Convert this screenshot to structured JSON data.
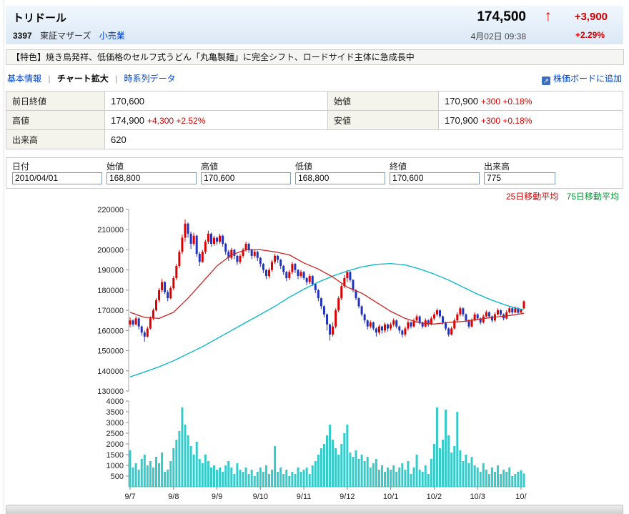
{
  "header": {
    "title": "トリドール",
    "code": "3397",
    "market": "東証マザーズ",
    "sector": "小売業",
    "price": "174,500",
    "change": "+3,900",
    "datetime": "4月02日 09:38",
    "percent": "+2.29%"
  },
  "icons": {
    "up_arrow": "↑",
    "add_board": "↗"
  },
  "feature": "【特色】焼き鳥発祥、低価格のセルフ式うどん「丸亀製麺」に完全シフト、ロードサイド主体に急成長中",
  "tabs": {
    "separator": "|",
    "items": [
      {
        "label": "基本情報",
        "active": false
      },
      {
        "label": "チャート拡大",
        "active": true
      },
      {
        "label": "時系列データ",
        "active": false
      }
    ],
    "add_board": "株価ボードに追加"
  },
  "summary": {
    "rows": [
      {
        "cells": [
          {
            "label": "前日終値",
            "value": "170,600",
            "extra": ""
          },
          {
            "label": "始値",
            "value": "170,900",
            "extra": "+300 +0.18%"
          }
        ]
      },
      {
        "cells": [
          {
            "label": "高値",
            "value": "174,900",
            "extra": "+4,300 +2.52%"
          },
          {
            "label": "安値",
            "value": "170,900",
            "extra": "+300 +0.18%"
          }
        ]
      },
      {
        "cells": [
          {
            "label": "出来高",
            "value": "620",
            "extra": ""
          }
        ]
      }
    ]
  },
  "form": {
    "headers": [
      "日付",
      "始値",
      "高値",
      "低値",
      "終値",
      "出来高"
    ],
    "values": [
      "2010/04/01",
      "168,800",
      "170,600",
      "168,800",
      "170,600",
      "775"
    ]
  },
  "legend": {
    "ma25": "25日移動平均",
    "ma75": "75日移動平均"
  },
  "colors": {
    "up": "#dd0000",
    "down": "#2233bb",
    "volume": "#35cbcb",
    "ma25": "#cc2222",
    "ma75": "#00b7c9",
    "legend_ma25": "#cc0000",
    "legend_ma75": "#009933",
    "negative_red": "#d40000",
    "link": "#0041cc"
  },
  "chart_data": {
    "type": "candlestick",
    "title": "",
    "xlabel": "",
    "ylabel": "",
    "grid": false,
    "legend_position": "top-right",
    "price_axis": {
      "min": 130000,
      "max": 220000,
      "ticks": [
        220000,
        210000,
        200000,
        190000,
        180000,
        170000,
        160000,
        150000,
        140000,
        130000
      ]
    },
    "volume_axis": {
      "min": 0,
      "max": 4000,
      "ticks": [
        4000,
        3500,
        3000,
        2500,
        2000,
        1500,
        1000,
        500
      ]
    },
    "x_ticks": [
      "9/7",
      "9/8",
      "9/9",
      "9/10",
      "9/11",
      "9/12",
      "10/1",
      "10/2",
      "10/3",
      "10/"
    ],
    "x_tick_indices": [
      0,
      15,
      30,
      45,
      60,
      75,
      90,
      105,
      120,
      135
    ],
    "candles": [
      [
        163000,
        166500,
        161500,
        165000,
        1700
      ],
      [
        165000,
        165500,
        162000,
        163000,
        900
      ],
      [
        163000,
        167000,
        162500,
        166000,
        1100
      ],
      [
        166000,
        166500,
        160500,
        162000,
        800
      ],
      [
        162000,
        162500,
        157500,
        159000,
        1300
      ],
      [
        159000,
        160000,
        154500,
        157000,
        1500
      ],
      [
        157000,
        162000,
        156500,
        161000,
        1000
      ],
      [
        161000,
        167000,
        160500,
        166000,
        1200
      ],
      [
        166000,
        171000,
        165000,
        170000,
        900
      ],
      [
        170000,
        176000,
        169500,
        175000,
        1400
      ],
      [
        175000,
        181000,
        174000,
        180000,
        1100
      ],
      [
        180000,
        185500,
        179000,
        184000,
        1600
      ],
      [
        184000,
        184500,
        178000,
        179000,
        700
      ],
      [
        179000,
        180000,
        174500,
        176000,
        800
      ],
      [
        176000,
        182000,
        175500,
        181000,
        1200
      ],
      [
        181000,
        187000,
        180000,
        186000,
        1800
      ],
      [
        186000,
        193000,
        185000,
        192000,
        2200
      ],
      [
        192000,
        200000,
        191000,
        199000,
        2600
      ],
      [
        199000,
        207500,
        198000,
        206000,
        3700
      ],
      [
        206000,
        215000,
        204000,
        213000,
        2900
      ],
      [
        213000,
        213500,
        206000,
        208000,
        2400
      ],
      [
        208000,
        209000,
        200500,
        203000,
        1900
      ],
      [
        203000,
        208500,
        202000,
        207000,
        1500
      ],
      [
        207000,
        207500,
        196500,
        198000,
        2100
      ],
      [
        198000,
        199000,
        192000,
        194000,
        1300
      ],
      [
        194000,
        200000,
        193500,
        199000,
        1100
      ],
      [
        199000,
        205000,
        198000,
        204000,
        1500
      ],
      [
        204000,
        209500,
        203000,
        208000,
        1200
      ],
      [
        208000,
        208500,
        201500,
        203000,
        900
      ],
      [
        203000,
        207000,
        202000,
        206000,
        1000
      ],
      [
        206000,
        206500,
        202500,
        204000,
        800
      ],
      [
        204000,
        208000,
        203000,
        207000,
        900
      ],
      [
        207000,
        207500,
        201500,
        203000,
        700
      ],
      [
        203000,
        203500,
        197500,
        199000,
        1000
      ],
      [
        199000,
        200000,
        194500,
        196000,
        1200
      ],
      [
        196000,
        201000,
        195000,
        200000,
        900
      ],
      [
        200000,
        200500,
        195500,
        197000,
        600
      ],
      [
        197000,
        197500,
        192500,
        194000,
        1100
      ],
      [
        194000,
        198000,
        193000,
        197000,
        800
      ],
      [
        197000,
        201000,
        196000,
        200000,
        700
      ],
      [
        200000,
        204000,
        199000,
        203000,
        900
      ],
      [
        203000,
        203500,
        198500,
        200000,
        600
      ],
      [
        200000,
        200500,
        195500,
        197000,
        800
      ],
      [
        197000,
        200000,
        196000,
        199000,
        500
      ],
      [
        199000,
        199500,
        194500,
        196000,
        700
      ],
      [
        196000,
        196500,
        191500,
        193000,
        900
      ],
      [
        193000,
        193500,
        188500,
        190000,
        700
      ],
      [
        190000,
        190500,
        185500,
        187000,
        1000
      ],
      [
        187000,
        191000,
        186000,
        190000,
        600
      ],
      [
        190000,
        195000,
        189000,
        194000,
        800
      ],
      [
        194000,
        198000,
        193000,
        197000,
        1900
      ],
      [
        197000,
        197500,
        193500,
        195000,
        700
      ],
      [
        195000,
        195500,
        190500,
        192000,
        900
      ],
      [
        192000,
        192500,
        187500,
        189000,
        600
      ],
      [
        189000,
        189500,
        184500,
        186000,
        800
      ],
      [
        186000,
        190000,
        185000,
        189000,
        500
      ],
      [
        189000,
        194000,
        188000,
        193000,
        700
      ],
      [
        193000,
        193500,
        188500,
        190000,
        600
      ],
      [
        190000,
        190500,
        185500,
        187000,
        900
      ],
      [
        187000,
        190000,
        186000,
        189000,
        700
      ],
      [
        189000,
        189500,
        185000,
        186000,
        800
      ],
      [
        186000,
        186500,
        182500,
        184000,
        900
      ],
      [
        184000,
        188000,
        183000,
        187000,
        600
      ],
      [
        187000,
        187500,
        182000,
        183000,
        1000
      ],
      [
        183000,
        183500,
        178500,
        180000,
        1200
      ],
      [
        180000,
        180500,
        174500,
        176000,
        1500
      ],
      [
        176000,
        176500,
        170500,
        172000,
        1800
      ],
      [
        172000,
        172500,
        166500,
        168000,
        2000
      ],
      [
        168000,
        168500,
        160000,
        163000,
        2400
      ],
      [
        163000,
        163500,
        155000,
        158000,
        2900
      ],
      [
        158000,
        164000,
        157000,
        162000,
        2200
      ],
      [
        162000,
        171000,
        161000,
        170000,
        1800
      ],
      [
        170000,
        177000,
        169000,
        176000,
        1500
      ],
      [
        176000,
        183000,
        175000,
        182000,
        2000
      ],
      [
        182000,
        187500,
        181000,
        186000,
        2500
      ],
      [
        186000,
        190000,
        184000,
        189000,
        2900
      ],
      [
        189000,
        189500,
        184000,
        185000,
        1600
      ],
      [
        185000,
        185500,
        179000,
        180000,
        1400
      ],
      [
        180000,
        180500,
        175000,
        176000,
        1700
      ],
      [
        176000,
        176500,
        171000,
        172000,
        1300
      ],
      [
        172000,
        172500,
        167000,
        168000,
        1500
      ],
      [
        168000,
        168500,
        163500,
        165000,
        1200
      ],
      [
        165000,
        165500,
        160500,
        162000,
        1400
      ],
      [
        162000,
        165000,
        161000,
        164000,
        900
      ],
      [
        164000,
        164500,
        160000,
        161000,
        1100
      ],
      [
        161000,
        161500,
        157000,
        159000,
        1300
      ],
      [
        159000,
        163000,
        158000,
        162000,
        800
      ],
      [
        162000,
        162500,
        158500,
        160000,
        1000
      ],
      [
        160000,
        164000,
        159000,
        163000,
        700
      ],
      [
        163000,
        163500,
        159500,
        161000,
        900
      ],
      [
        161000,
        164000,
        160000,
        163000,
        800
      ],
      [
        163000,
        166000,
        162000,
        165000,
        1000
      ],
      [
        165000,
        165500,
        161000,
        162000,
        700
      ],
      [
        162000,
        162500,
        158500,
        160000,
        900
      ],
      [
        160000,
        160500,
        156500,
        158000,
        1100
      ],
      [
        158000,
        162000,
        157000,
        161000,
        800
      ],
      [
        161000,
        165000,
        160000,
        164000,
        1200
      ],
      [
        164000,
        164500,
        161000,
        162000,
        600
      ],
      [
        162000,
        166000,
        161500,
        165000,
        900
      ],
      [
        165000,
        168000,
        164000,
        167000,
        1500
      ],
      [
        167000,
        167500,
        163000,
        164000,
        800
      ],
      [
        164000,
        164500,
        161000,
        162000,
        700
      ],
      [
        162000,
        166000,
        161500,
        165000,
        1000
      ],
      [
        165000,
        165500,
        162000,
        163000,
        600
      ],
      [
        163000,
        167000,
        162500,
        166000,
        1300
      ],
      [
        166000,
        169000,
        165000,
        168000,
        2000
      ],
      [
        168000,
        171000,
        167000,
        170000,
        3700
      ],
      [
        170000,
        170500,
        166000,
        167000,
        1800
      ],
      [
        167000,
        167500,
        163000,
        164000,
        2200
      ],
      [
        164000,
        164500,
        160000,
        161000,
        3600
      ],
      [
        161000,
        161500,
        157000,
        158000,
        2400
      ],
      [
        158000,
        162000,
        157500,
        161000,
        1600
      ],
      [
        161000,
        166000,
        160500,
        165000,
        1900
      ],
      [
        165000,
        169000,
        164000,
        168000,
        3500
      ],
      [
        168000,
        172000,
        167000,
        171000,
        1700
      ],
      [
        171000,
        171500,
        167000,
        168000,
        1200
      ],
      [
        168000,
        168500,
        164000,
        165000,
        1500
      ],
      [
        165000,
        165500,
        161000,
        162000,
        1100
      ],
      [
        162000,
        166000,
        161500,
        165000,
        1400
      ],
      [
        165000,
        169000,
        164500,
        168000,
        1000
      ],
      [
        168000,
        168500,
        165000,
        166000,
        900
      ],
      [
        166000,
        166500,
        163000,
        164000,
        700
      ],
      [
        164000,
        168000,
        163500,
        167000,
        1100
      ],
      [
        167000,
        170000,
        166500,
        169000,
        800
      ],
      [
        169000,
        169500,
        166000,
        167000,
        600
      ],
      [
        167000,
        167500,
        164000,
        165000,
        900
      ],
      [
        165000,
        169000,
        164500,
        168000,
        700
      ],
      [
        168000,
        171000,
        167500,
        170000,
        1000
      ],
      [
        170000,
        170500,
        167000,
        168000,
        600
      ],
      [
        168000,
        168500,
        165000,
        166000,
        800
      ],
      [
        166000,
        170000,
        165500,
        169000,
        700
      ],
      [
        169000,
        172000,
        168500,
        171000,
        900
      ],
      [
        171000,
        171500,
        168000,
        169000,
        500
      ],
      [
        169000,
        172000,
        168500,
        171000,
        600
      ],
      [
        171000,
        171500,
        168000,
        168800,
        700
      ],
      [
        168800,
        170600,
        168800,
        170600,
        775
      ],
      [
        170900,
        174900,
        170900,
        174500,
        620
      ]
    ],
    "ma25_anchors": [
      [
        0,
        169000
      ],
      [
        5,
        166500
      ],
      [
        10,
        166000
      ],
      [
        15,
        169000
      ],
      [
        20,
        176000
      ],
      [
        25,
        184000
      ],
      [
        30,
        192000
      ],
      [
        35,
        197500
      ],
      [
        40,
        200000
      ],
      [
        45,
        200000
      ],
      [
        50,
        199000
      ],
      [
        55,
        197500
      ],
      [
        60,
        193500
      ],
      [
        65,
        190500
      ],
      [
        70,
        186500
      ],
      [
        75,
        181500
      ],
      [
        80,
        178500
      ],
      [
        85,
        174000
      ],
      [
        90,
        169500
      ],
      [
        95,
        166000
      ],
      [
        100,
        163800
      ],
      [
        105,
        163200
      ],
      [
        110,
        164000
      ],
      [
        115,
        164500
      ],
      [
        120,
        165500
      ],
      [
        125,
        166500
      ],
      [
        130,
        167200
      ],
      [
        136,
        168500
      ]
    ],
    "ma75_anchors": [
      [
        0,
        137000
      ],
      [
        5,
        139500
      ],
      [
        10,
        142000
      ],
      [
        15,
        145000
      ],
      [
        20,
        148500
      ],
      [
        25,
        152000
      ],
      [
        30,
        156000
      ],
      [
        35,
        160000
      ],
      [
        40,
        164000
      ],
      [
        45,
        168000
      ],
      [
        50,
        172000
      ],
      [
        55,
        176500
      ],
      [
        60,
        180500
      ],
      [
        65,
        184000
      ],
      [
        70,
        187000
      ],
      [
        75,
        189500
      ],
      [
        80,
        191500
      ],
      [
        85,
        192800
      ],
      [
        90,
        193200
      ],
      [
        95,
        192500
      ],
      [
        100,
        190500
      ],
      [
        105,
        188000
      ],
      [
        110,
        185000
      ],
      [
        115,
        181500
      ],
      [
        120,
        178000
      ],
      [
        125,
        175000
      ],
      [
        130,
        172500
      ],
      [
        133,
        171200
      ],
      [
        136,
        170300
      ]
    ]
  }
}
